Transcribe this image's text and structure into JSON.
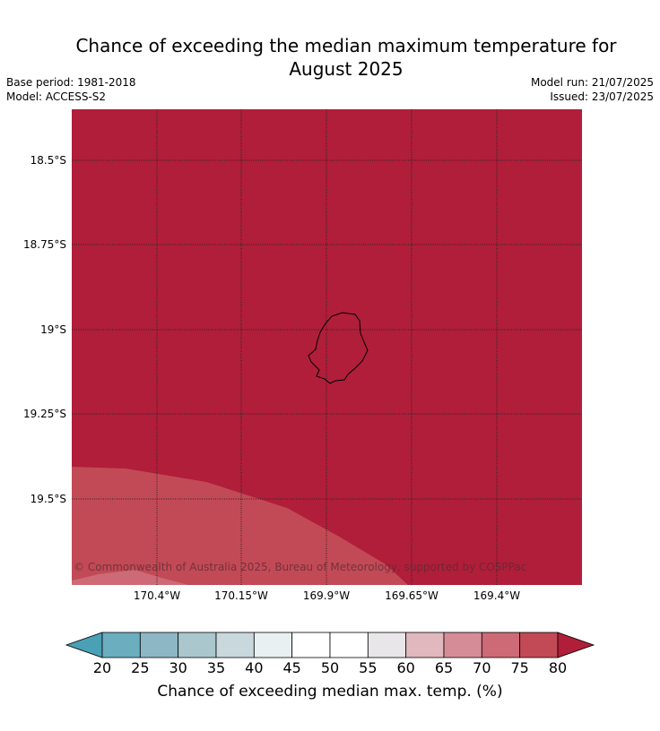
{
  "title": "Chance of exceeding the median maximum temperature for August 2025",
  "title_line1": "Chance of exceeding the median maximum temperature for",
  "title_line2": "August 2025",
  "meta": {
    "base_period": "Base period: 1981-2018",
    "model": "Model: ACCESS-S2",
    "model_run": "Model run: 21/07/2025",
    "issued": "Issued: 23/07/2025"
  },
  "map": {
    "lat_labels": [
      "18.5°S",
      "18.75°S",
      "19°S",
      "19.25°S",
      "19.5°S"
    ],
    "lon_labels": [
      "170.4°W",
      "170.15°W",
      "169.9°W",
      "169.65°W",
      "169.4°W"
    ],
    "copyright": "© Commonwealth of Australia 2025, Bureau of Meteorology, supported by COSPPac",
    "region_colors": {
      "above_80": "#b01e3a",
      "75_80": "#c24a56",
      "70_75": "#cd6a76"
    }
  },
  "colorbar": {
    "label": "Chance of exceeding median max. temp. (%)",
    "ticks": [
      "20",
      "25",
      "30",
      "35",
      "40",
      "45",
      "50",
      "55",
      "60",
      "65",
      "70",
      "75",
      "80"
    ],
    "low_color": "#4aa0b5",
    "high_color": "#b01e3a",
    "bin_colors": [
      "#6aaec0",
      "#8db7c4",
      "#a9c7cc",
      "#c8d8dc",
      "#e8f0f2",
      "#ffffff",
      "#ffffff",
      "#e8e6e8",
      "#e0b8bd",
      "#d68c96",
      "#cd6a76",
      "#c24a56"
    ]
  }
}
